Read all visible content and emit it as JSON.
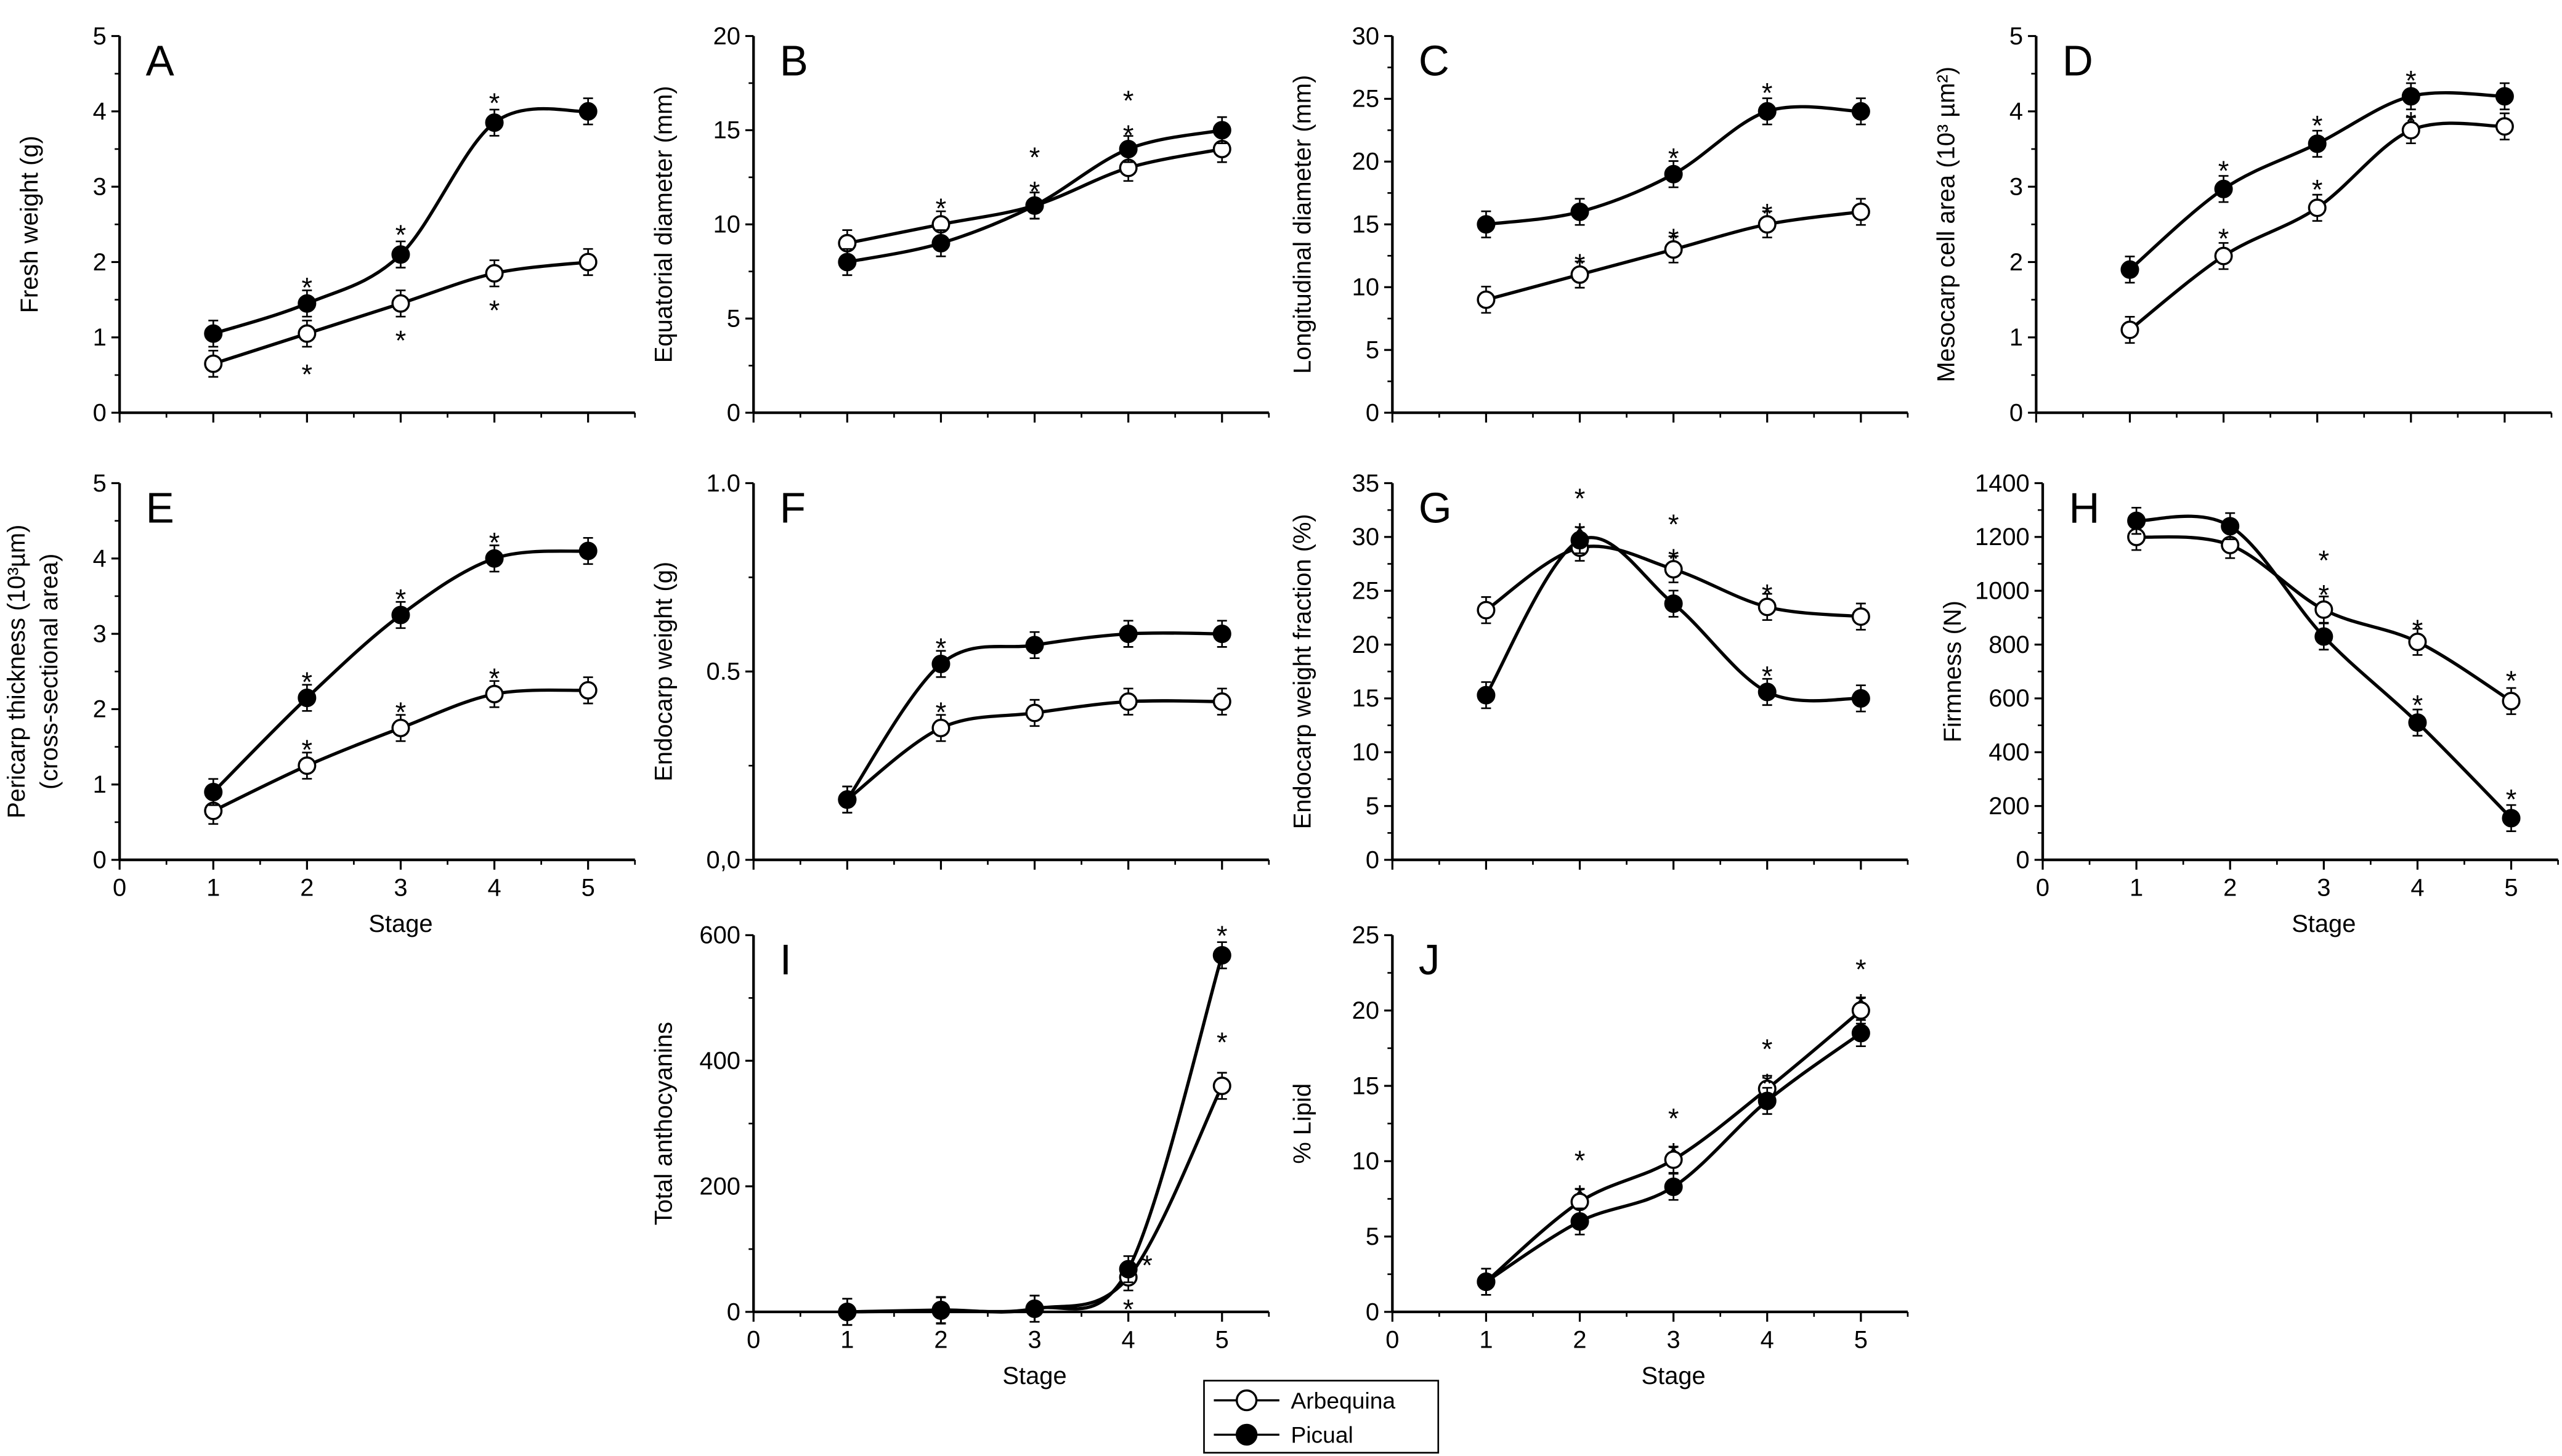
{
  "chart_data": [
    {
      "id": "A",
      "type": "line",
      "panel_label": "A",
      "ylabel": "Fresh weight (g)",
      "xlabel": "",
      "ylim": [
        0,
        5
      ],
      "yticks": [
        "0",
        "1",
        "2",
        "3",
        "4",
        "5"
      ],
      "ytick_values": [
        0,
        1,
        2,
        3,
        4,
        5
      ],
      "show_xticklabels": false,
      "x": [
        1,
        2,
        3,
        4,
        5
      ],
      "series": [
        {
          "name": "Arbequina",
          "values": [
            0.65,
            1.05,
            1.45,
            1.85,
            2.0
          ]
        },
        {
          "name": "Picual",
          "values": [
            1.05,
            1.45,
            2.1,
            3.85,
            4.0
          ]
        }
      ],
      "annotations": [
        {
          "x": 2,
          "y": 1.75,
          "text": "*"
        },
        {
          "x": 2,
          "y": 0.6,
          "text": "*"
        },
        {
          "x": 3,
          "y": 2.45,
          "text": "*"
        },
        {
          "x": 3,
          "y": 1.05,
          "text": "*"
        },
        {
          "x": 4,
          "y": 4.2,
          "text": "*"
        },
        {
          "x": 4,
          "y": 1.45,
          "text": "*"
        }
      ]
    },
    {
      "id": "B",
      "type": "line",
      "panel_label": "B",
      "ylabel": "Equatorial diameter (mm)",
      "xlabel": "",
      "ylim": [
        0,
        20
      ],
      "yticks": [
        "0",
        "5",
        "10",
        "15",
        "20"
      ],
      "ytick_values": [
        0,
        5,
        10,
        15,
        20
      ],
      "show_xticklabels": false,
      "x": [
        1,
        2,
        3,
        4,
        5
      ],
      "series": [
        {
          "name": "Arbequina",
          "values": [
            9,
            10,
            11,
            13,
            14
          ]
        },
        {
          "name": "Picual",
          "values": [
            8,
            9,
            11,
            14,
            15
          ]
        }
      ],
      "annotations": [
        {
          "x": 2,
          "y": 11.2,
          "text": "*"
        },
        {
          "x": 3,
          "y": 13.3,
          "text": "*"
        },
        {
          "x": 3,
          "y": 12.1,
          "text": "*"
        },
        {
          "x": 4,
          "y": 16.3,
          "text": "*"
        },
        {
          "x": 4,
          "y": 15.1,
          "text": "*"
        }
      ]
    },
    {
      "id": "C",
      "type": "line",
      "panel_label": "C",
      "ylabel": "Longitudinal diameter (mm)",
      "xlabel": "",
      "ylim": [
        0,
        30
      ],
      "yticks": [
        "0",
        "5",
        "10",
        "15",
        "20",
        "25",
        "30"
      ],
      "ytick_values": [
        0,
        5,
        10,
        15,
        20,
        25,
        30
      ],
      "show_xticklabels": false,
      "x": [
        1,
        2,
        3,
        4,
        5
      ],
      "series": [
        {
          "name": "Arbequina",
          "values": [
            9,
            11,
            13,
            15,
            16
          ]
        },
        {
          "name": "Picual",
          "values": [
            15,
            16,
            19,
            24,
            24
          ]
        }
      ],
      "annotations": [
        {
          "x": 2,
          "y": 12.4,
          "text": "*"
        },
        {
          "x": 3,
          "y": 14.4,
          "text": "*"
        },
        {
          "x": 3,
          "y": 20.8,
          "text": "*"
        },
        {
          "x": 4,
          "y": 16.4,
          "text": "*"
        },
        {
          "x": 4,
          "y": 26.0,
          "text": "*"
        }
      ]
    },
    {
      "id": "D",
      "type": "line",
      "panel_label": "D",
      "ylabel": "Mesocarp cell area (10³ µm²)",
      "xlabel": "",
      "ylim": [
        0,
        5
      ],
      "yticks": [
        "0",
        "1",
        "2",
        "3",
        "4",
        "5"
      ],
      "ytick_values": [
        0,
        1,
        2,
        3,
        4,
        5
      ],
      "show_xticklabels": false,
      "x": [
        1,
        2,
        3,
        4,
        5
      ],
      "series": [
        {
          "name": "Arbequina",
          "values": [
            1.1,
            2.08,
            2.72,
            3.75,
            3.8
          ]
        },
        {
          "name": "Picual",
          "values": [
            1.9,
            2.97,
            3.57,
            4.2,
            4.2
          ]
        }
      ],
      "annotations": [
        {
          "x": 2,
          "y": 2.4,
          "text": "*"
        },
        {
          "x": 2,
          "y": 3.3,
          "text": "*"
        },
        {
          "x": 3,
          "y": 3.05,
          "text": "*"
        },
        {
          "x": 3,
          "y": 3.9,
          "text": "*"
        },
        {
          "x": 4,
          "y": 3.95,
          "text": "*"
        },
        {
          "x": 4,
          "y": 4.5,
          "text": "*"
        }
      ]
    },
    {
      "id": "E",
      "type": "line",
      "panel_label": "E",
      "ylabel": "Pericarp thickness (10³µm)",
      "ylabel2": "(cross-sectional area)",
      "xlabel": "Stage",
      "ylim": [
        0,
        5
      ],
      "yticks": [
        "0",
        "1",
        "2",
        "3",
        "4",
        "5"
      ],
      "ytick_values": [
        0,
        1,
        2,
        3,
        4,
        5
      ],
      "show_xticklabels": true,
      "x": [
        1,
        2,
        3,
        4,
        5
      ],
      "series": [
        {
          "name": "Arbequina",
          "values": [
            0.65,
            1.25,
            1.75,
            2.2,
            2.25
          ]
        },
        {
          "name": "Picual",
          "values": [
            0.9,
            2.15,
            3.25,
            4.0,
            4.1
          ]
        }
      ],
      "annotations": [
        {
          "x": 2,
          "y": 1.55,
          "text": "*"
        },
        {
          "x": 2,
          "y": 2.45,
          "text": "*"
        },
        {
          "x": 3,
          "y": 2.05,
          "text": "*"
        },
        {
          "x": 3,
          "y": 3.55,
          "text": "*"
        },
        {
          "x": 4,
          "y": 2.5,
          "text": "*"
        },
        {
          "x": 4,
          "y": 4.3,
          "text": "*"
        }
      ]
    },
    {
      "id": "F",
      "type": "line",
      "panel_label": "F",
      "ylabel": "Endocarp weight (g)",
      "xlabel": "",
      "ylim": [
        0,
        1.0
      ],
      "yticks": [
        "0,0",
        "0.5",
        "1.0"
      ],
      "ytick_values": [
        0,
        0.5,
        1.0
      ],
      "show_xticklabels": false,
      "x": [
        1,
        2,
        3,
        4,
        5
      ],
      "series": [
        {
          "name": "Arbequina",
          "values": [
            0.16,
            0.35,
            0.39,
            0.42,
            0.42
          ]
        },
        {
          "name": "Picual",
          "values": [
            0.16,
            0.52,
            0.57,
            0.6,
            0.6
          ]
        }
      ],
      "annotations": [
        {
          "x": 2,
          "y": 0.41,
          "text": "*"
        },
        {
          "x": 2,
          "y": 0.58,
          "text": "*"
        }
      ]
    },
    {
      "id": "G",
      "type": "line",
      "panel_label": "G",
      "ylabel": "Endocarp weight fraction (%)",
      "xlabel": "",
      "ylim": [
        0,
        35
      ],
      "yticks": [
        "0",
        "5",
        "10",
        "15",
        "20",
        "25",
        "30",
        "35"
      ],
      "ytick_values": [
        0,
        5,
        10,
        15,
        20,
        25,
        30,
        35
      ],
      "show_xticklabels": false,
      "x": [
        1,
        2,
        3,
        4,
        5
      ],
      "series": [
        {
          "name": "Arbequina",
          "values": [
            23.2,
            29.0,
            27.0,
            23.5,
            22.6
          ]
        },
        {
          "name": "Picual",
          "values": [
            15.3,
            29.7,
            23.8,
            15.6,
            15.0
          ]
        }
      ],
      "annotations": [
        {
          "x": 2,
          "y": 33.0,
          "text": "*"
        },
        {
          "x": 2,
          "y": 31.0,
          "text": "*"
        },
        {
          "x": 3,
          "y": 30.6,
          "text": "*"
        },
        {
          "x": 3,
          "y": 28.6,
          "text": "*"
        },
        {
          "x": 4,
          "y": 25.3,
          "text": "*"
        },
        {
          "x": 4,
          "y": 17.7,
          "text": "*"
        }
      ]
    },
    {
      "id": "H",
      "type": "line",
      "panel_label": "H",
      "ylabel": "Firmness (N)",
      "xlabel": "Stage",
      "ylim": [
        0,
        1400
      ],
      "yticks": [
        "0",
        "200",
        "400",
        "600",
        "800",
        "1000",
        "1200",
        "1400"
      ],
      "ytick_values": [
        0,
        200,
        400,
        600,
        800,
        1000,
        1200,
        1400
      ],
      "show_xticklabels": true,
      "x": [
        1,
        2,
        3,
        4,
        5
      ],
      "series": [
        {
          "name": "Arbequina",
          "values": [
            1200,
            1170,
            930,
            810,
            590
          ]
        },
        {
          "name": "Picual",
          "values": [
            1260,
            1240,
            830,
            510,
            155
          ]
        }
      ],
      "annotations": [
        {
          "x": 3,
          "y": 1120,
          "text": "*"
        },
        {
          "x": 3,
          "y": 1010,
          "text": "*"
        },
        {
          "x": 4,
          "y": 880,
          "text": "*"
        },
        {
          "x": 4,
          "y": 600,
          "text": "*"
        },
        {
          "x": 5,
          "y": 690,
          "text": "*"
        },
        {
          "x": 5,
          "y": 250,
          "text": "*"
        }
      ]
    },
    {
      "id": "I",
      "type": "line",
      "panel_label": "I",
      "ylabel": "Total anthocyanins",
      "xlabel": "Stage",
      "ylim": [
        0,
        600
      ],
      "yticks": [
        "0",
        "200",
        "400",
        "600"
      ],
      "ytick_values": [
        0,
        200,
        400,
        600
      ],
      "show_xticklabels": true,
      "x": [
        1,
        2,
        3,
        4,
        5
      ],
      "series": [
        {
          "name": "Arbequina",
          "values": [
            0,
            2,
            5,
            55,
            360
          ]
        },
        {
          "name": "Picual",
          "values": [
            0,
            3,
            5,
            68,
            568
          ]
        }
      ],
      "annotations": [
        {
          "x": 4.2,
          "y": 85,
          "text": "*"
        },
        {
          "x": 4,
          "y": 15,
          "text": "*"
        },
        {
          "x": 5,
          "y": 440,
          "text": "*"
        },
        {
          "x": 5,
          "y": 610,
          "text": "*"
        }
      ]
    },
    {
      "id": "J",
      "type": "line",
      "panel_label": "J",
      "ylabel": "% Lipid",
      "xlabel": "Stage",
      "ylim": [
        0,
        25
      ],
      "yticks": [
        "0",
        "5",
        "10",
        "15",
        "20",
        "25"
      ],
      "ytick_values": [
        0,
        5,
        10,
        15,
        20,
        25
      ],
      "show_xticklabels": true,
      "x": [
        1,
        2,
        3,
        4,
        5
      ],
      "series": [
        {
          "name": "Arbequina",
          "values": [
            2.0,
            7.3,
            10.1,
            14.8,
            20.0
          ]
        },
        {
          "name": "Picual",
          "values": [
            2.0,
            6.0,
            8.3,
            14.0,
            18.5
          ]
        }
      ],
      "annotations": [
        {
          "x": 2,
          "y": 9.4,
          "text": "*"
        },
        {
          "x": 2,
          "y": 8.2,
          "text": "*"
        },
        {
          "x": 3,
          "y": 12.2,
          "text": "*"
        },
        {
          "x": 3,
          "y": 11.0,
          "text": "*"
        },
        {
          "x": 4,
          "y": 16.8,
          "text": "*"
        },
        {
          "x": 4,
          "y": 15.6,
          "text": "*"
        },
        {
          "x": 5,
          "y": 22.1,
          "text": "*"
        },
        {
          "x": 5,
          "y": 20.9,
          "text": "*"
        }
      ]
    }
  ],
  "x_tick_labels": [
    "0",
    "1",
    "2",
    "3",
    "4",
    "5"
  ],
  "legend": {
    "placement": "bottom-center",
    "items": [
      {
        "name": "Arbequina",
        "marker": "open-circle"
      },
      {
        "name": "Picual",
        "marker": "filled-circle"
      }
    ]
  },
  "colors": {
    "ink": "#000000",
    "open_fill": "#ffffff"
  }
}
